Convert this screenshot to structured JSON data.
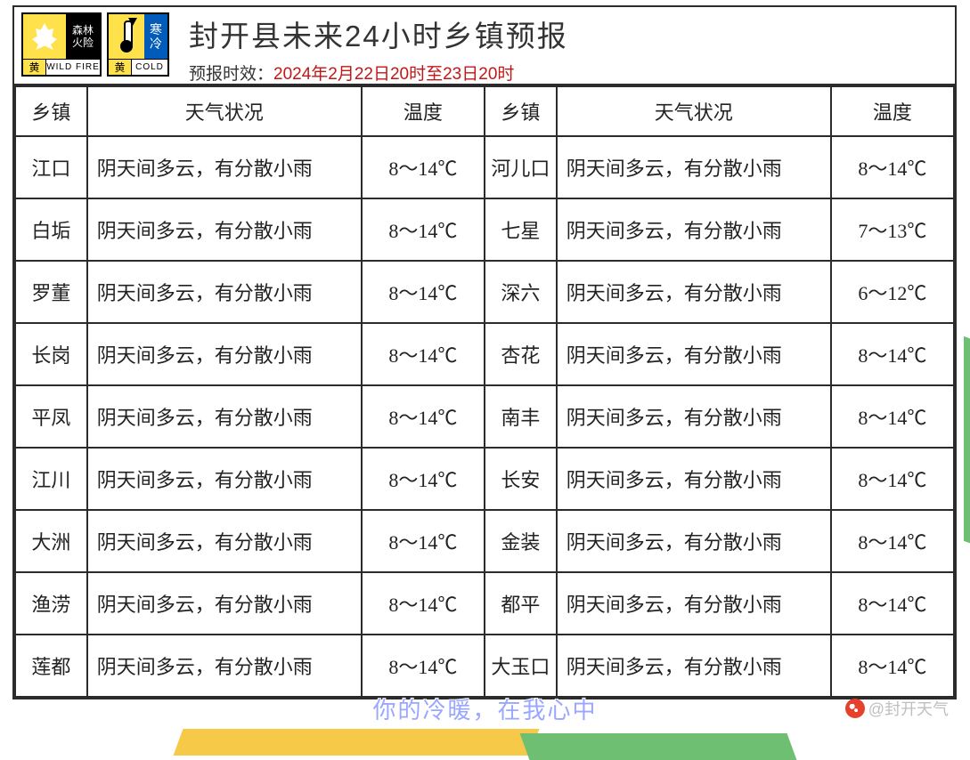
{
  "header": {
    "title": "封开县未来24小时乡镇预报",
    "subtitle_label": "预报时效：",
    "subtitle_value": "2024年2月22日20时至23日20时"
  },
  "badges": {
    "fire": {
      "right_l1": "森林",
      "right_l2": "火险",
      "bot_left": "黄",
      "bot_right": "WILD FIRE",
      "border": "#000000",
      "bg": "#ffe14b"
    },
    "cold": {
      "right_l1": "寒",
      "right_l2": "冷",
      "bot_left": "黄",
      "bot_right": "COLD",
      "blue": "#005bbb",
      "bg": "#ffe14b"
    }
  },
  "columns": {
    "town": "乡镇",
    "wx": "天气状况",
    "temp": "温度"
  },
  "rows": [
    {
      "l_town": "江口",
      "l_wx": "阴天间多云，有分散小雨",
      "l_temp": "8～14℃",
      "r_town": "河儿口",
      "r_wx": "阴天间多云，有分散小雨",
      "r_temp": "8～14℃"
    },
    {
      "l_town": "白垢",
      "l_wx": "阴天间多云，有分散小雨",
      "l_temp": "8～14℃",
      "r_town": "七星",
      "r_wx": "阴天间多云，有分散小雨",
      "r_temp": "7～13℃"
    },
    {
      "l_town": "罗董",
      "l_wx": "阴天间多云，有分散小雨",
      "l_temp": "8～14℃",
      "r_town": "深六",
      "r_wx": "阴天间多云，有分散小雨",
      "r_temp": "6～12℃"
    },
    {
      "l_town": "长岗",
      "l_wx": "阴天间多云，有分散小雨",
      "l_temp": "8～14℃",
      "r_town": "杏花",
      "r_wx": "阴天间多云，有分散小雨",
      "r_temp": "8～14℃"
    },
    {
      "l_town": "平凤",
      "l_wx": "阴天间多云，有分散小雨",
      "l_temp": "8～14℃",
      "r_town": "南丰",
      "r_wx": "阴天间多云，有分散小雨",
      "r_temp": "8～14℃"
    },
    {
      "l_town": "江川",
      "l_wx": "阴天间多云，有分散小雨",
      "l_temp": "8～14℃",
      "r_town": "长安",
      "r_wx": "阴天间多云，有分散小雨",
      "r_temp": "8～14℃"
    },
    {
      "l_town": "大洲",
      "l_wx": "阴天间多云，有分散小雨",
      "l_temp": "8～14℃",
      "r_town": "金装",
      "r_wx": "阴天间多云，有分散小雨",
      "r_temp": "8～14℃"
    },
    {
      "l_town": "渔涝",
      "l_wx": "阴天间多云，有分散小雨",
      "l_temp": "8～14℃",
      "r_town": "都平",
      "r_wx": "阴天间多云，有分散小雨",
      "r_temp": "8～14℃"
    },
    {
      "l_town": "莲都",
      "l_wx": "阴天间多云，有分散小雨",
      "l_temp": "8～14℃",
      "r_town": "大玉口",
      "r_wx": "阴天间多云，有分散小雨",
      "r_temp": "8～14℃"
    }
  ],
  "footer": {
    "tagline": "你的冷暖，在我心中",
    "account": "@封开天气"
  },
  "style": {
    "border_color": "#2b2b2b",
    "title_color": "#333333",
    "date_color": "#c31616",
    "font_body": "KaiTi",
    "cell_fontsize": 22,
    "title_fontsize": 33
  }
}
